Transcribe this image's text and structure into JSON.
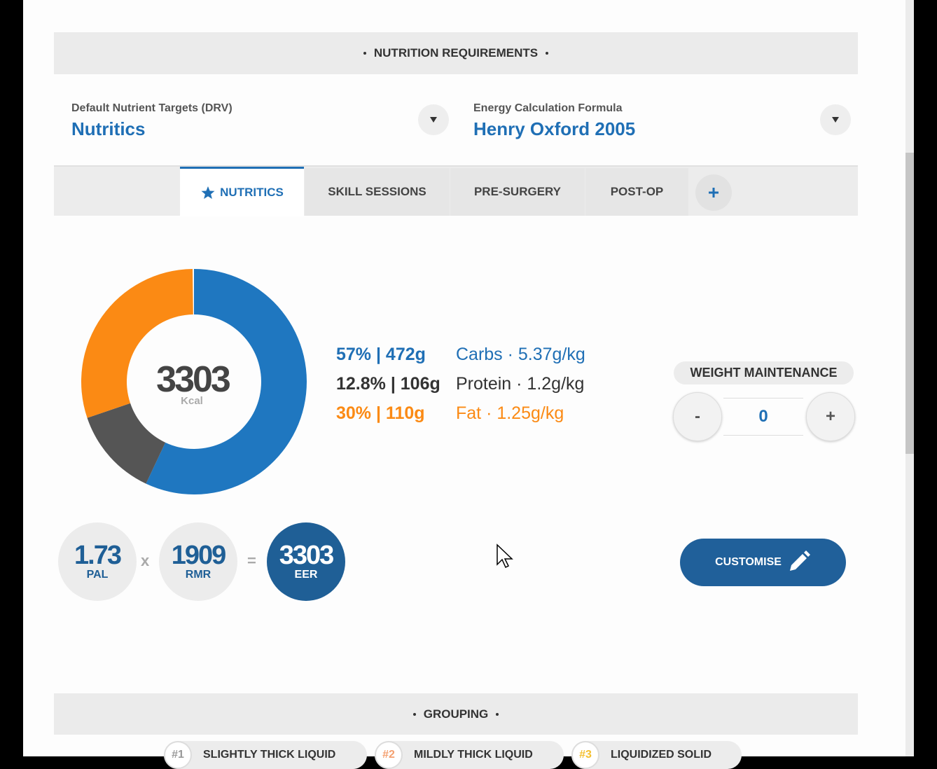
{
  "header": {
    "title": "NUTRITION REQUIREMENTS"
  },
  "selectors": [
    {
      "label": "Default Nutrient Targets (DRV)",
      "value": "Nutritics"
    },
    {
      "label": "Energy Calculation Formula",
      "value": "Henry Oxford 2005"
    }
  ],
  "tabs": [
    "NUTRITICS",
    "SKILL SESSIONS",
    "PRE-SURGERY",
    "POST-OP"
  ],
  "chart_data": {
    "type": "donut",
    "center_value": 3303,
    "center_unit": "Kcal",
    "categories": [
      "Carbs · 5.37g/kg",
      "Protein · 1.2g/kg",
      "Fat · 1.25g/kg"
    ],
    "values": [
      57,
      12.8,
      30
    ],
    "value_labels": [
      "57% | 472g",
      "12.8% | 106g",
      "30% | 110g"
    ],
    "colors": [
      "#1f77c0",
      "#555555",
      "#fb8a14"
    ]
  },
  "weight": {
    "label": "WEIGHT MAINTENANCE",
    "minus": "-",
    "value": 0,
    "plus": "+"
  },
  "equation": {
    "pal": {
      "value": 1.73,
      "label": "PAL"
    },
    "times": "x",
    "rmr": {
      "value": 1909,
      "label": "RMR"
    },
    "equals": "=",
    "eer": {
      "value": 3303,
      "label": "EER"
    }
  },
  "customise": "CUSTOMISE",
  "grouping": {
    "title": "GROUPING",
    "chips": [
      {
        "number": "#1",
        "label": "SLIGHTLY THICK LIQUID"
      },
      {
        "number": "#2",
        "label": "MILDLY THICK LIQUID"
      },
      {
        "number": "#3",
        "label": "LIQUIDIZED SOLID"
      }
    ]
  }
}
